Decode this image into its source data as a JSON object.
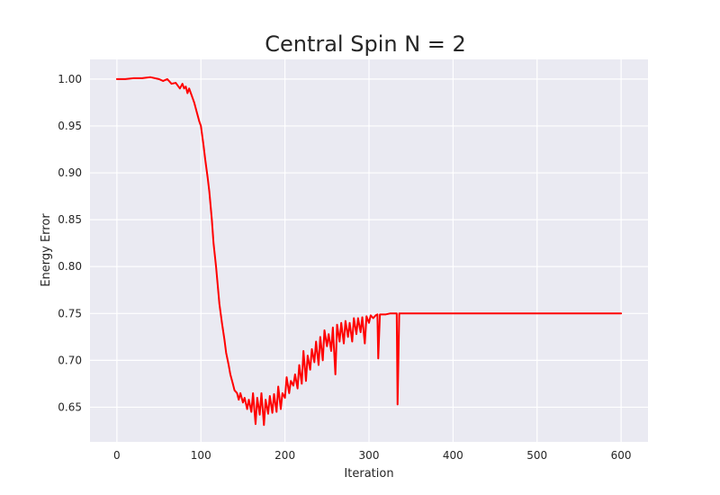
{
  "chart_data": {
    "type": "line",
    "title": "Central Spin N = 2",
    "xlabel": "Iteration",
    "ylabel": "Energy Error",
    "xlim": [
      -32,
      632
    ],
    "ylim": [
      0.613,
      1.021
    ],
    "xticks": [
      0,
      100,
      200,
      300,
      400,
      500,
      600
    ],
    "yticks": [
      0.65,
      0.7,
      0.75,
      0.8,
      0.85,
      0.9,
      0.95,
      1.0
    ],
    "grid": true,
    "colors": {
      "series": "#ff0000",
      "background": "#eaeaf2",
      "grid": "#ffffff"
    },
    "series": [
      {
        "x": [
          0,
          10,
          20,
          30,
          40,
          50,
          55,
          60,
          65,
          70,
          75,
          78,
          80,
          82,
          84,
          86,
          88,
          90,
          92,
          95,
          98,
          100,
          103,
          105,
          108,
          110,
          113,
          115,
          118,
          120,
          122,
          125,
          128,
          130,
          133,
          135,
          138,
          140,
          143,
          145,
          147,
          150,
          152,
          155,
          157,
          160,
          162,
          165,
          167,
          170,
          172,
          175,
          177,
          180,
          182,
          185,
          187,
          190,
          192,
          195,
          197,
          200,
          202,
          205,
          207,
          210,
          212,
          215,
          217,
          220,
          222,
          225,
          227,
          230,
          232,
          235,
          237,
          240,
          242,
          245,
          247,
          250,
          252,
          255,
          257,
          260,
          262,
          265,
          267,
          270,
          272,
          275,
          277,
          280,
          282,
          285,
          287,
          290,
          292,
          295,
          297,
          300,
          302,
          305,
          308,
          310,
          311,
          313,
          315,
          318,
          320,
          325,
          330,
          333,
          334,
          336,
          340,
          350,
          360,
          380,
          400,
          450,
          500,
          550,
          600
        ],
        "y": [
          1.0,
          1.0,
          1.001,
          1.001,
          1.002,
          1.0,
          0.998,
          1.0,
          0.995,
          0.996,
          0.99,
          0.995,
          0.99,
          0.992,
          0.985,
          0.99,
          0.985,
          0.98,
          0.975,
          0.965,
          0.955,
          0.95,
          0.93,
          0.915,
          0.895,
          0.88,
          0.85,
          0.825,
          0.8,
          0.78,
          0.76,
          0.74,
          0.722,
          0.708,
          0.695,
          0.685,
          0.675,
          0.668,
          0.665,
          0.658,
          0.665,
          0.655,
          0.66,
          0.648,
          0.658,
          0.645,
          0.665,
          0.632,
          0.66,
          0.642,
          0.665,
          0.631,
          0.658,
          0.643,
          0.662,
          0.644,
          0.664,
          0.645,
          0.672,
          0.648,
          0.665,
          0.66,
          0.682,
          0.665,
          0.678,
          0.673,
          0.685,
          0.67,
          0.695,
          0.675,
          0.71,
          0.678,
          0.705,
          0.69,
          0.712,
          0.698,
          0.72,
          0.695,
          0.725,
          0.7,
          0.732,
          0.715,
          0.728,
          0.71,
          0.735,
          0.685,
          0.738,
          0.72,
          0.74,
          0.718,
          0.742,
          0.725,
          0.74,
          0.72,
          0.745,
          0.728,
          0.745,
          0.73,
          0.746,
          0.718,
          0.747,
          0.74,
          0.748,
          0.745,
          0.748,
          0.749,
          0.702,
          0.749,
          0.749,
          0.749,
          0.749,
          0.75,
          0.75,
          0.75,
          0.653,
          0.75,
          0.75,
          0.75,
          0.75,
          0.75,
          0.75,
          0.75,
          0.75,
          0.75,
          0.75
        ]
      }
    ]
  }
}
